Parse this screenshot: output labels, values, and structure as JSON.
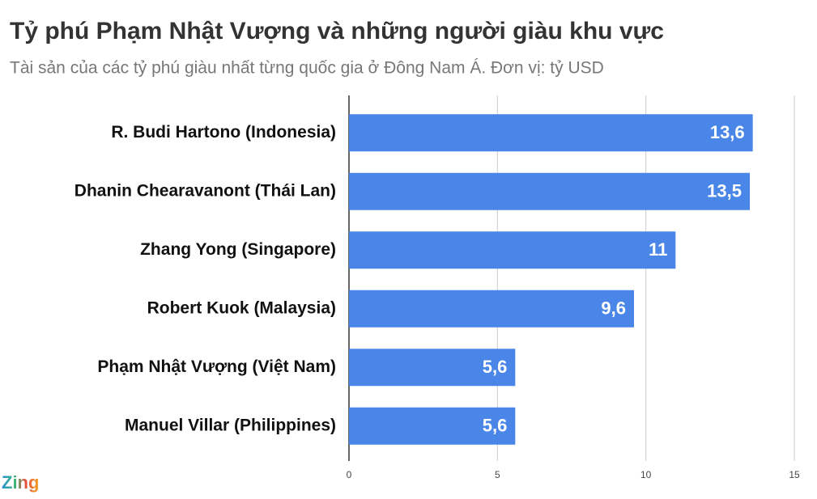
{
  "chart_data": {
    "type": "hbar",
    "title": "Tỷ phú Phạm Nhật Vượng và những người giàu khu vực",
    "subtitle": "Tài sản của các tỷ phú giàu nhất từng quốc gia ở Đông Nam Á. Đơn vị: tỷ USD",
    "categories": [
      "R. Budi Hartono (Indonesia)",
      "Dhanin Chearavanont (Thái Lan)",
      "Zhang Yong (Singapore)",
      "Robert Kuok (Malaysia)",
      "Phạm Nhật Vượng (Việt Nam)",
      "Manuel Villar (Philippines)"
    ],
    "values": [
      13.6,
      13.5,
      11,
      9.6,
      5.6,
      5.6
    ],
    "value_labels": [
      "13,6",
      "13,5",
      "11",
      "9,6",
      "5,6",
      "5,6"
    ],
    "color": "#4a86e8",
    "xlim": [
      0,
      15
    ],
    "xticks": [
      0,
      5,
      10,
      15
    ],
    "grid": true,
    "watermark": "Zing"
  }
}
